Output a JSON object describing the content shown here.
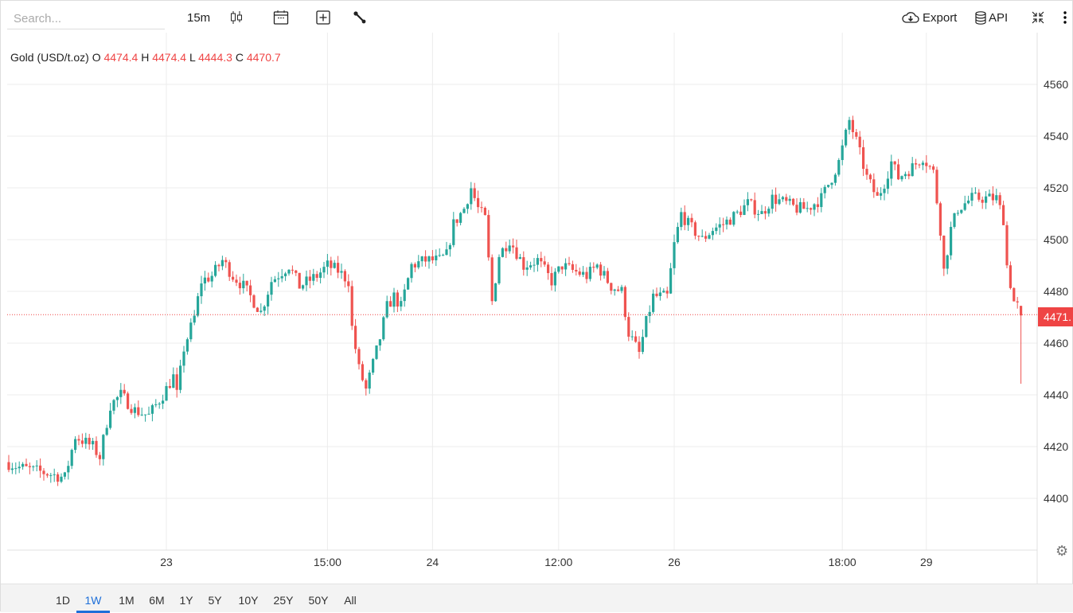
{
  "toolbar": {
    "search_placeholder": "Search...",
    "interval": "15m",
    "export": "Export",
    "api": "API"
  },
  "legend": {
    "symbol": "Gold (USD/t.oz)",
    "o_label": "O",
    "o": "4474.4",
    "h_label": "H",
    "h": "4474.4",
    "l_label": "L",
    "l": "4444.3",
    "c_label": "C",
    "c": "4470.7"
  },
  "current_price_label": "4471.",
  "ranges": [
    "1D",
    "1W",
    "1M",
    "6M",
    "1Y",
    "5Y",
    "10Y",
    "25Y",
    "50Y",
    "All"
  ],
  "active_range": "1W",
  "colors": {
    "up": "#26a69a",
    "down": "#ef5350",
    "price_line": "#ef4444",
    "active": "#1e6fd9"
  },
  "chart_data": {
    "type": "candlestick",
    "title": "Gold (USD/t.oz)",
    "y_ticks": [
      "4560",
      "4540",
      "4520",
      "4500",
      "4480",
      "4460",
      "4440",
      "4420",
      "4400"
    ],
    "ylim": [
      4380,
      4580
    ],
    "x_ticks": [
      {
        "label": "23",
        "bar": 45
      },
      {
        "label": "15:00",
        "bar": 91
      },
      {
        "label": "24",
        "bar": 121
      },
      {
        "label": "12:00",
        "bar": 157
      },
      {
        "label": "26",
        "bar": 190
      },
      {
        "label": "18:00",
        "bar": 238
      },
      {
        "label": "29",
        "bar": 262
      }
    ],
    "bars": 290,
    "close_path": [
      [
        0,
        4414
      ],
      [
        4,
        4412
      ],
      [
        11,
        4410
      ],
      [
        17,
        4408
      ],
      [
        20,
        4424
      ],
      [
        25,
        4420
      ],
      [
        27,
        4416
      ],
      [
        30,
        4436
      ],
      [
        33,
        4440
      ],
      [
        37,
        4434
      ],
      [
        41,
        4432
      ],
      [
        45,
        4440
      ],
      [
        48,
        4447
      ],
      [
        49,
        4440
      ],
      [
        51,
        4458
      ],
      [
        54,
        4470
      ],
      [
        56,
        4484
      ],
      [
        59,
        4486
      ],
      [
        62,
        4492
      ],
      [
        65,
        4486
      ],
      [
        68,
        4482
      ],
      [
        73,
        4472
      ],
      [
        76,
        4484
      ],
      [
        81,
        4490
      ],
      [
        84,
        4482
      ],
      [
        89,
        4486
      ],
      [
        92,
        4490
      ],
      [
        95,
        4488
      ],
      [
        98,
        4484
      ],
      [
        99,
        4466
      ],
      [
        101,
        4450
      ],
      [
        103,
        4442
      ],
      [
        105,
        4452
      ],
      [
        107,
        4462
      ],
      [
        109,
        4474
      ],
      [
        111,
        4478
      ],
      [
        113,
        4474
      ],
      [
        116,
        4490
      ],
      [
        120,
        4492
      ],
      [
        124,
        4492
      ],
      [
        126,
        4494
      ],
      [
        128,
        4506
      ],
      [
        131,
        4512
      ],
      [
        133,
        4520
      ],
      [
        135,
        4512
      ],
      [
        137,
        4508
      ],
      [
        139,
        4476
      ],
      [
        141,
        4494
      ],
      [
        144,
        4500
      ],
      [
        148,
        4490
      ],
      [
        152,
        4492
      ],
      [
        156,
        4484
      ],
      [
        159,
        4490
      ],
      [
        162,
        4488
      ],
      [
        166,
        4486
      ],
      [
        169,
        4490
      ],
      [
        173,
        4482
      ],
      [
        176,
        4480
      ],
      [
        178,
        4464
      ],
      [
        181,
        4456
      ],
      [
        183,
        4468
      ],
      [
        185,
        4478
      ],
      [
        189,
        4478
      ],
      [
        191,
        4498
      ],
      [
        193,
        4510
      ],
      [
        195,
        4506
      ],
      [
        199,
        4500
      ],
      [
        202,
        4504
      ],
      [
        205,
        4506
      ],
      [
        209,
        4510
      ],
      [
        212,
        4514
      ],
      [
        216,
        4510
      ],
      [
        219,
        4516
      ],
      [
        223,
        4514
      ],
      [
        226,
        4512
      ],
      [
        229,
        4512
      ],
      [
        233,
        4516
      ],
      [
        236,
        4524
      ],
      [
        238,
        4530
      ],
      [
        241,
        4546
      ],
      [
        243,
        4538
      ],
      [
        246,
        4524
      ],
      [
        249,
        4516
      ],
      [
        251,
        4522
      ],
      [
        253,
        4530
      ],
      [
        255,
        4524
      ],
      [
        259,
        4528
      ],
      [
        262,
        4532
      ],
      [
        265,
        4526
      ],
      [
        267,
        4504
      ],
      [
        268,
        4488
      ],
      [
        270,
        4504
      ],
      [
        272,
        4512
      ],
      [
        276,
        4516
      ],
      [
        279,
        4516
      ],
      [
        283,
        4516
      ],
      [
        285,
        4508
      ],
      [
        286,
        4490
      ],
      [
        288,
        4476
      ],
      [
        289,
        4474.4
      ]
    ],
    "last_candle": {
      "open": 4474.4,
      "high": 4474.4,
      "low": 4444.3,
      "close": 4470.7
    },
    "current_price": 4471
  }
}
